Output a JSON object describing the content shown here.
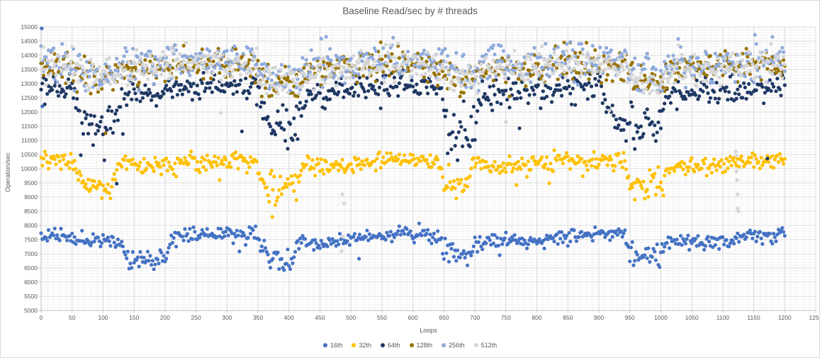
{
  "chart_data": {
    "type": "scatter",
    "title": "Baseline Read/sec by # threads",
    "xlabel": "Loops",
    "ylabel": "Operation/sec",
    "xlim": [
      0,
      1250
    ],
    "ylim": [
      5000,
      15000
    ],
    "x_major_step": 50,
    "x_minor_step": 10,
    "y_major_step": 500,
    "y_minor_step": 100,
    "grid": {
      "major_color": "#d9d9d9",
      "minor_color": "#f2f2f2",
      "axis_color": "#bfbfbf"
    },
    "text_color": "#595959",
    "legend_position": "bottom",
    "marker_radius": 2.6,
    "x_series_start": 0,
    "x_series_end": 1200,
    "x_series_step": 2,
    "seed": 1337,
    "series": [
      {
        "name": "16th",
        "color": "#4472C4",
        "mean": 7560,
        "sd": 135,
        "wander": 145,
        "period": 310,
        "phase": -522,
        "clip": [
          6420,
          8150
        ],
        "straggler_prob": 0.012,
        "straggler_min": 250,
        "straggler_max": 750,
        "dips": [
          {
            "from": 125,
            "to": 215,
            "depth": 830
          },
          {
            "from": 348,
            "to": 415,
            "depth": 900
          },
          {
            "from": 640,
            "to": 705,
            "depth": 600
          },
          {
            "from": 938,
            "to": 1012,
            "depth": 860
          }
        ],
        "outliers": [
          [
            1,
            14950
          ],
          [
            2,
            12200
          ],
          [
            513,
            6825
          ]
        ]
      },
      {
        "name": "32th",
        "color": "#FFC000",
        "mean": 10210,
        "sd": 160,
        "wander": 100,
        "period": 300,
        "phase": -515,
        "clip": [
          8720,
          10800
        ],
        "straggler_prob": 0.01,
        "straggler_min": 300,
        "straggler_max": 900,
        "dips": [
          {
            "from": 48,
            "to": 126,
            "depth": 1000
          },
          {
            "from": 342,
            "to": 424,
            "depth": 1060
          },
          {
            "from": 638,
            "to": 700,
            "depth": 1000
          },
          {
            "from": 935,
            "to": 1015,
            "depth": 1050
          }
        ],
        "outliers": [
          [
            373,
            8300
          ],
          [
            767,
            9425
          ]
        ]
      },
      {
        "name": "64th",
        "color": "#1F3864",
        "mean": 12780,
        "sd": 235,
        "wander": 140,
        "period": 300,
        "phase": -510,
        "clip": [
          10300,
          13480
        ],
        "straggler_prob": 0.02,
        "straggler_min": 300,
        "straggler_max": 1400,
        "dips": [
          {
            "from": 48,
            "to": 132,
            "depth": 1500
          },
          {
            "from": 345,
            "to": 432,
            "depth": 1300
          },
          {
            "from": 640,
            "to": 710,
            "depth": 1700
          },
          {
            "from": 900,
            "to": 1012,
            "depth": 1400
          }
        ],
        "outliers": [
          [
            122,
            9475
          ],
          [
            772,
            11425
          ],
          [
            1172,
            10357
          ]
        ]
      },
      {
        "name": "128th",
        "color": "#997300",
        "mean": 13580,
        "sd": 275,
        "wander": 120,
        "period": 290,
        "phase": -490,
        "clip": [
          12550,
          14550
        ],
        "straggler_prob": 0.006,
        "straggler_min": 300,
        "straggler_max": 900,
        "dips": [
          {
            "from": 50,
            "to": 130,
            "depth": 400
          },
          {
            "from": 345,
            "to": 430,
            "depth": 650
          },
          {
            "from": 645,
            "to": 710,
            "depth": 400
          },
          {
            "from": 938,
            "to": 1015,
            "depth": 550
          }
        ],
        "outliers": [
          [
            104,
            11250
          ]
        ]
      },
      {
        "name": "256th",
        "color": "#8FAADC",
        "mean": 13780,
        "sd": 320,
        "wander": 140,
        "period": 320,
        "phase": -530,
        "clip": [
          12750,
          14960
        ],
        "straggler_prob": 0.006,
        "straggler_min": 300,
        "straggler_max": 1000,
        "dips": [
          {
            "from": 50,
            "to": 130,
            "depth": 450
          },
          {
            "from": 345,
            "to": 430,
            "depth": 700
          },
          {
            "from": 645,
            "to": 710,
            "depth": 450
          },
          {
            "from": 938,
            "to": 1015,
            "depth": 600
          }
        ],
        "outliers": []
      },
      {
        "name": "512th",
        "color": "#D6D6D6",
        "mean": 13620,
        "sd": 285,
        "wander": 120,
        "period": 305,
        "phase": -500,
        "clip": [
          12650,
          14720
        ],
        "straggler_prob": 0.005,
        "straggler_min": 800,
        "straggler_max": 2600,
        "dips": [
          {
            "from": 50,
            "to": 130,
            "depth": 400
          },
          {
            "from": 345,
            "to": 430,
            "depth": 650
          },
          {
            "from": 645,
            "to": 710,
            "depth": 400
          },
          {
            "from": 938,
            "to": 1015,
            "depth": 550
          }
        ],
        "outliers": [
          [
            290,
            11975
          ],
          [
            486,
            9100
          ],
          [
            489,
            8775
          ],
          [
            487,
            7600
          ],
          [
            485,
            7100
          ],
          [
            750,
            11650
          ],
          [
            917,
            12050
          ],
          [
            1121,
            10600
          ],
          [
            1122,
            10450
          ],
          [
            1122,
            9900
          ],
          [
            1123,
            9600
          ],
          [
            1124,
            9100
          ],
          [
            1124,
            8600
          ],
          [
            1125,
            8500
          ]
        ]
      }
    ]
  }
}
